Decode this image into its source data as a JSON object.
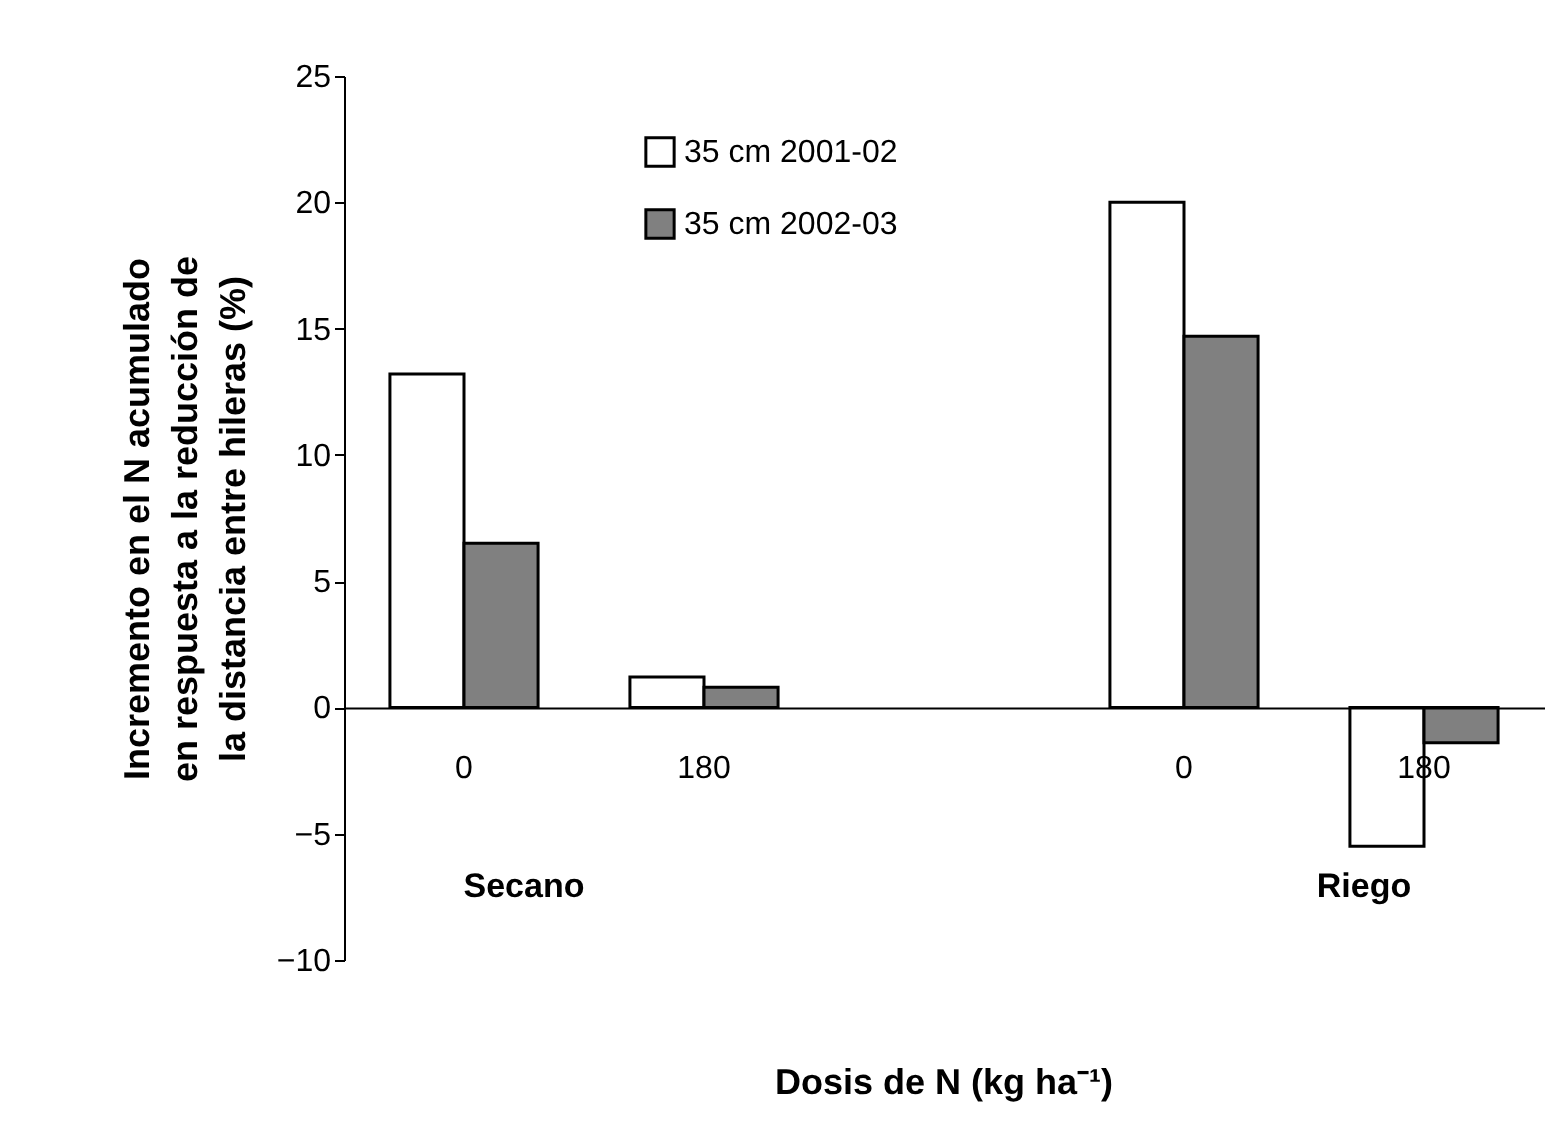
{
  "chart_data": {
    "type": "bar",
    "ylabel": "Incremento en el N acumulado\nen respuesta a la reducción de\nla distancia entre hileras (%)",
    "xlabel": "Dosis de N (kg ha⁻¹)",
    "categories": [
      "0",
      "180",
      null,
      "0",
      "180"
    ],
    "series": [
      {
        "name": "35 cm 2001-02",
        "color": "#ffffff",
        "values": [
          13.2,
          1.2,
          null,
          20.0,
          -5.5
        ]
      },
      {
        "name": "35 cm 2002-03",
        "color": "#808080",
        "values": [
          6.5,
          0.8,
          null,
          14.7,
          -1.4
        ]
      }
    ],
    "ylim": [
      -10,
      25
    ],
    "yticks": [
      -10,
      -5,
      0,
      5,
      10,
      15,
      20,
      25
    ],
    "annotations": [
      "Secano",
      "Riego"
    ],
    "legend": "top",
    "grid": false
  }
}
